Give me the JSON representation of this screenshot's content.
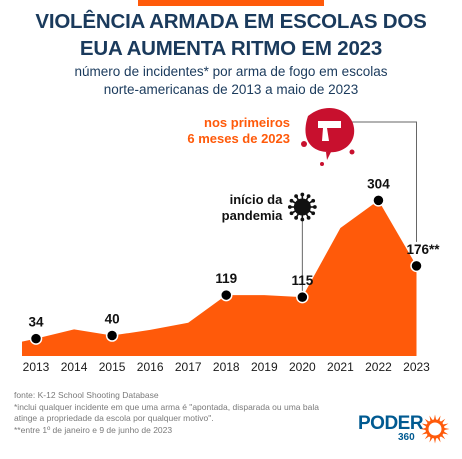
{
  "colors": {
    "accent": "#ff5a0a",
    "title": "#1a3a5c",
    "marker": "#000000",
    "logo": "#005a91",
    "blood": "#c8102e"
  },
  "header": {
    "title_line1": "VIOLÊNCIA ARMADA EM ESCOLAS DOS",
    "title_line2": "EUA AUMENTA RITMO EM 2023",
    "subtitle_line1": "número de incidentes* por arma de fogo em escolas",
    "subtitle_line2": "norte-americanas de 2013 a maio de 2023"
  },
  "chart_data": {
    "type": "area",
    "title": "VIOLÊNCIA ARMADA EM ESCOLAS DOS EUA AUMENTA RITMO EM 2023",
    "subtitle": "número de incidentes* por arma de fogo em escolas norte-americanas de 2013 a maio de 2023",
    "xlabel": "",
    "ylabel": "",
    "x": [
      "2013",
      "2014",
      "2015",
      "2016",
      "2017",
      "2018",
      "2019",
      "2020",
      "2021",
      "2022",
      "2023"
    ],
    "values": [
      34,
      52,
      40,
      51,
      65,
      119,
      119,
      115,
      250,
      304,
      176
    ],
    "labels": [
      "34",
      "",
      "40",
      "",
      "",
      "119",
      "",
      "115",
      "",
      "304",
      "176**"
    ],
    "marked": [
      true,
      false,
      true,
      false,
      false,
      true,
      false,
      true,
      false,
      true,
      true
    ],
    "ylim": [
      0,
      330
    ],
    "grid": false,
    "annotations": [
      {
        "text_line1": "início da",
        "text_line2": "pandemia",
        "x": "2020",
        "icon": "virus-icon"
      },
      {
        "text_line1": "nos primeiros",
        "text_line2": "6 meses de 2023",
        "x": "2023",
        "icon": "gun-icon"
      }
    ]
  },
  "footer": {
    "source": "fonte: K-12 School Shooting Database",
    "note1_line1": "*inclui qualquer incidente em que uma arma é \"apontada, disparada ou uma bala",
    "note1_line2": "atinge a propriedade da escola por qualquer motivo\".",
    "note2": "**entre 1º de janeiro e 9 de junho de 2023"
  },
  "logo": {
    "word": "PODER",
    "sub": "360"
  }
}
